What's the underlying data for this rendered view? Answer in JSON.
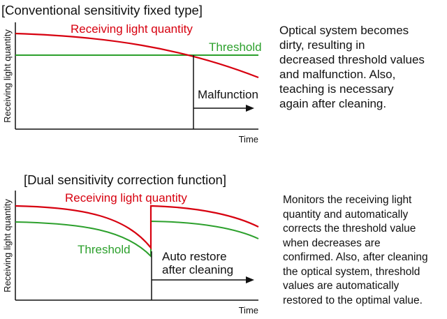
{
  "panels": [
    {
      "heading": "[Conventional sensitivity fixed type]",
      "ylabel": "Receiving light quantity",
      "xlabel": "Time",
      "receiving_label": "Receiving light quantity",
      "threshold_label": "Threshold",
      "event_label": "Malfunction",
      "description": "Optical system becomes\ndirty, resulting in\ndecreased threshold values\nand malfunction. Also,\nteaching is necessary\nagain after cleaning."
    },
    {
      "heading": "[Dual sensitivity correction function]",
      "ylabel": "Receiving light quantity",
      "xlabel": "Time",
      "receiving_label": "Receiving light quantity",
      "threshold_label": "Threshold",
      "event_label_line1": "Auto restore",
      "event_label_line2": "after cleaning",
      "description": "Monitors the receiving light\nquantity and automatically\ncorrects the threshold value\nwhen decreases are\nconfirmed. Also, after cleaning\nthe optical system, threshold\nvalues are automatically\nrestored to the optimal value."
    }
  ],
  "colors": {
    "receiving": "#d7000f",
    "threshold": "#2ca02c",
    "axis": "#111111"
  }
}
